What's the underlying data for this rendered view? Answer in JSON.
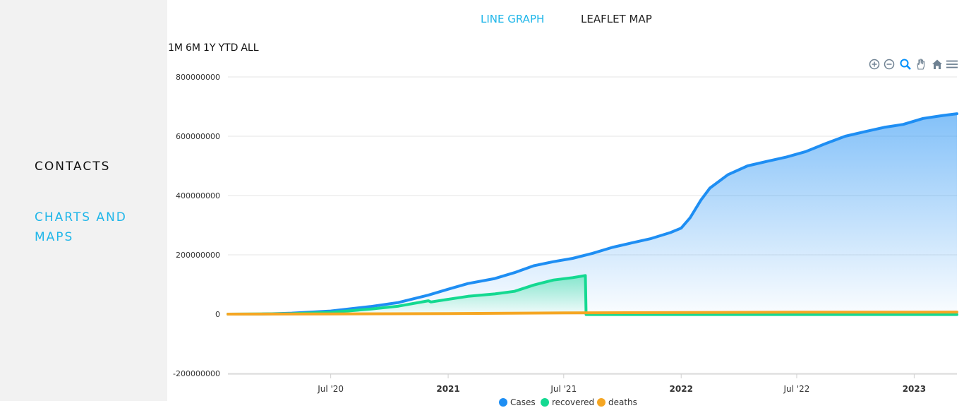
{
  "sidebar": {
    "contacts_label": "CONTACTS",
    "charts_label": "CHARTS AND MAPS"
  },
  "tabs": {
    "line_graph": "LINE GRAPH",
    "leaflet_map": "LEAFLET MAP"
  },
  "ranges": [
    "1M",
    "6M",
    "1Y",
    "YTD",
    "ALL"
  ],
  "toolbar_icons": [
    "zoom-in-icon",
    "zoom-out-icon",
    "selection-zoom-icon",
    "pan-icon",
    "reset-home-icon",
    "menu-icon"
  ],
  "colors": {
    "cases": "#1e8ef3",
    "recovered": "#14d991",
    "deaths": "#f5a623",
    "accent": "#1fb6e9"
  },
  "chart_data": {
    "type": "area",
    "title": "",
    "xlabel": "",
    "ylabel": "",
    "ylim": [
      -200000000,
      800000000
    ],
    "yticks": [
      800000000,
      600000000,
      400000000,
      200000000,
      0,
      -200000000
    ],
    "ytick_labels": [
      "800000000",
      "600000000",
      "400000000",
      "200000000",
      "0",
      "-200000000"
    ],
    "xlim": [
      "2020-01-22",
      "2023-03-09"
    ],
    "xticks": [
      {
        "date": "2020-07-01",
        "label": "Jul '20",
        "bold": false
      },
      {
        "date": "2021-01-01",
        "label": "2021",
        "bold": true
      },
      {
        "date": "2021-07-01",
        "label": "Jul '21",
        "bold": false
      },
      {
        "date": "2022-01-01",
        "label": "2022",
        "bold": true
      },
      {
        "date": "2022-07-01",
        "label": "Jul '22",
        "bold": false
      },
      {
        "date": "2023-01-01",
        "label": "2023",
        "bold": true
      }
    ],
    "grid": true,
    "legend_position": "bottom-center",
    "series": [
      {
        "name": "Cases",
        "points": [
          [
            "2020-01-22",
            0
          ],
          [
            "2020-03-15",
            200000
          ],
          [
            "2020-05-01",
            3300000
          ],
          [
            "2020-07-01",
            10500000
          ],
          [
            "2020-09-01",
            25500000
          ],
          [
            "2020-10-15",
            39000000
          ],
          [
            "2020-12-01",
            64000000
          ],
          [
            "2021-01-01",
            84000000
          ],
          [
            "2021-02-01",
            103000000
          ],
          [
            "2021-03-15",
            120000000
          ],
          [
            "2021-04-15",
            140000000
          ],
          [
            "2021-05-15",
            163000000
          ],
          [
            "2021-06-15",
            177000000
          ],
          [
            "2021-07-15",
            188000000
          ],
          [
            "2021-08-15",
            205000000
          ],
          [
            "2021-09-15",
            225000000
          ],
          [
            "2021-10-15",
            240000000
          ],
          [
            "2021-11-15",
            255000000
          ],
          [
            "2021-12-15",
            275000000
          ],
          [
            "2022-01-01",
            290000000
          ],
          [
            "2022-01-15",
            325000000
          ],
          [
            "2022-02-01",
            385000000
          ],
          [
            "2022-02-15",
            425000000
          ],
          [
            "2022-03-15",
            470000000
          ],
          [
            "2022-04-15",
            500000000
          ],
          [
            "2022-05-15",
            515000000
          ],
          [
            "2022-06-15",
            530000000
          ],
          [
            "2022-07-15",
            548000000
          ],
          [
            "2022-08-15",
            575000000
          ],
          [
            "2022-09-15",
            600000000
          ],
          [
            "2022-10-15",
            615000000
          ],
          [
            "2022-11-15",
            630000000
          ],
          [
            "2022-12-15",
            640000000
          ],
          [
            "2023-01-15",
            660000000
          ],
          [
            "2023-02-15",
            670000000
          ],
          [
            "2023-03-09",
            676000000
          ]
        ]
      },
      {
        "name": "recovered",
        "points": [
          [
            "2020-01-22",
            0
          ],
          [
            "2020-05-01",
            1500000
          ],
          [
            "2020-07-01",
            6000000
          ],
          [
            "2020-09-01",
            17000000
          ],
          [
            "2020-10-15",
            27000000
          ],
          [
            "2020-12-01",
            45000000
          ],
          [
            "2020-12-05",
            41000000
          ],
          [
            "2021-01-01",
            50000000
          ],
          [
            "2021-02-01",
            60000000
          ],
          [
            "2021-03-15",
            68000000
          ],
          [
            "2021-04-15",
            77000000
          ],
          [
            "2021-05-15",
            98000000
          ],
          [
            "2021-06-15",
            115000000
          ],
          [
            "2021-07-15",
            123000000
          ],
          [
            "2021-08-04",
            130000000
          ],
          [
            "2021-08-05",
            -1500000
          ],
          [
            "2023-03-09",
            -1500000
          ]
        ]
      },
      {
        "name": "deaths",
        "points": [
          [
            "2020-01-22",
            0
          ],
          [
            "2020-07-01",
            500000
          ],
          [
            "2021-01-01",
            1900000
          ],
          [
            "2021-07-01",
            4000000
          ],
          [
            "2022-01-01",
            5500000
          ],
          [
            "2022-07-01",
            6350000
          ],
          [
            "2023-01-01",
            6700000
          ],
          [
            "2023-03-09",
            6850000
          ]
        ]
      }
    ]
  }
}
